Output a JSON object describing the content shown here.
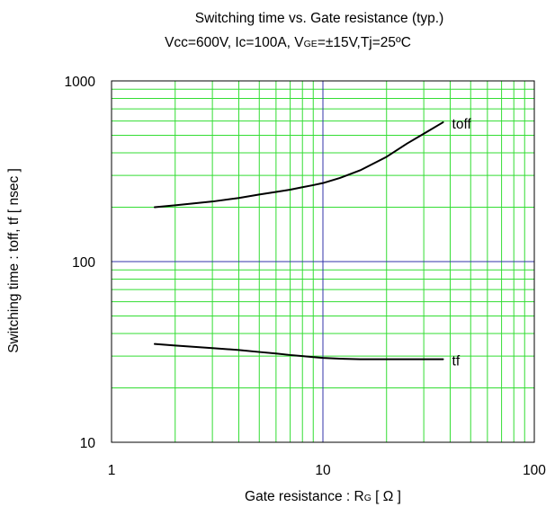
{
  "chart_data": {
    "type": "line",
    "title": "Switching time vs. Gate resistance (typ.)",
    "conditions": {
      "parts": [
        {
          "text": "Vcc=600V, Ic=100A, V",
          "sub": false
        },
        {
          "text": "GE",
          "sub": true
        },
        {
          "text": "=±15V,Tj=25ºC",
          "sub": false
        }
      ]
    },
    "xlabel": {
      "parts": [
        {
          "text": "Gate resistance : R",
          "sub": false
        },
        {
          "text": "G",
          "sub": true
        },
        {
          "text": " [  Ω ]",
          "sub": false
        }
      ]
    },
    "ylabel": "Switching time :  toff, tf [ nsec ]",
    "x_scale": "log",
    "y_scale": "log",
    "xlim": [
      1,
      100
    ],
    "ylim": [
      10,
      1000
    ],
    "x_ticks": [
      {
        "value": 1,
        "label": "1"
      },
      {
        "value": 10,
        "label": "10"
      },
      {
        "value": 100,
        "label": "100"
      }
    ],
    "y_ticks": [
      {
        "value": 10,
        "label": "10"
      },
      {
        "value": 100,
        "label": "100"
      },
      {
        "value": 1000,
        "label": "1000"
      }
    ],
    "grid": true,
    "series": [
      {
        "name": "toff",
        "color": "#000000",
        "x": [
          1.6,
          2,
          3,
          4,
          5,
          6,
          7,
          8,
          9,
          10,
          12,
          15,
          20,
          25,
          30,
          37
        ],
        "y": [
          200,
          205,
          215,
          225,
          235,
          243,
          250,
          258,
          265,
          272,
          290,
          320,
          380,
          450,
          510,
          590
        ]
      },
      {
        "name": "tf",
        "color": "#000000",
        "x": [
          1.6,
          2,
          3,
          4,
          5,
          6,
          7,
          8,
          9,
          10,
          12,
          15,
          20,
          25,
          30,
          37
        ],
        "y": [
          35,
          34.3,
          33.2,
          32.4,
          31.6,
          31,
          30.4,
          30,
          29.6,
          29.3,
          29,
          28.8,
          28.8,
          28.8,
          28.8,
          28.8
        ]
      }
    ],
    "colors": {
      "minor_grid": "#33dd33",
      "major_grid": "#3333aa",
      "frame": "#000000",
      "curve": "#000000"
    }
  }
}
